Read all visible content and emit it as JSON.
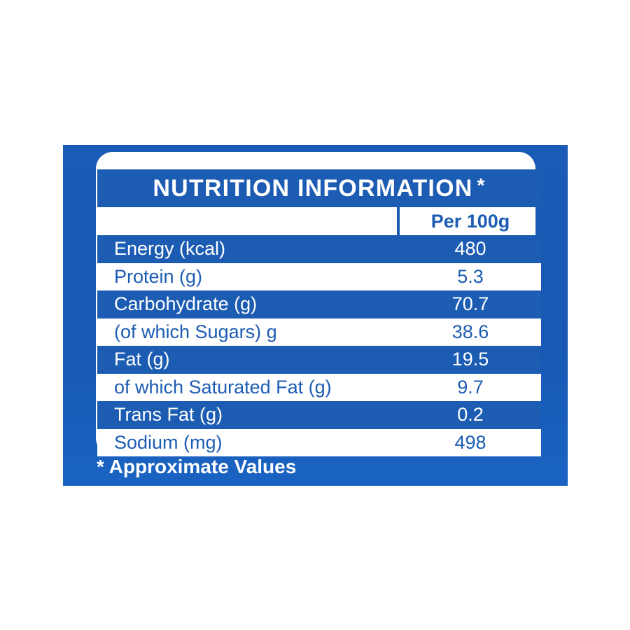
{
  "title": "NUTRITION INFORMATION",
  "title_marker": "*",
  "column_header": "Per 100g",
  "rows": [
    {
      "label": "Energy (kcal)",
      "value": "480"
    },
    {
      "label": "Protein (g)",
      "value": "5.3"
    },
    {
      "label": "Carbohydrate (g)",
      "value": "70.7"
    },
    {
      "label": "(of which Sugars) g",
      "value": "38.6"
    },
    {
      "label": "Fat (g)",
      "value": "19.5"
    },
    {
      "label": "of which Saturated Fat (g)",
      "value": "9.7"
    },
    {
      "label": "Trans Fat (g)",
      "value": "0.2"
    },
    {
      "label": "Sodium (mg)",
      "value": "498"
    }
  ],
  "footnote": "* Approximate Values",
  "colors": {
    "brand_blue": "#1c5cb3",
    "background": "#ffffff"
  }
}
